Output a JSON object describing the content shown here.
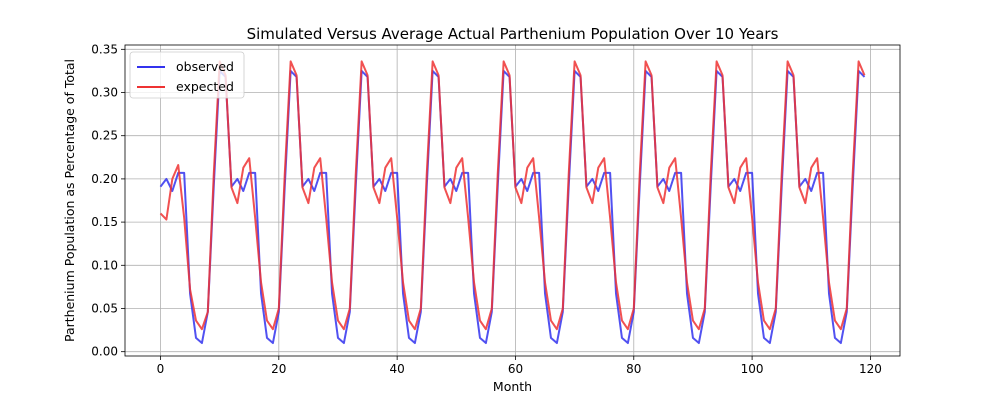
{
  "chart_data": {
    "type": "line",
    "title": "Simulated Versus Average Actual Parthenium Population Over 10 Years",
    "xlabel": "Month",
    "ylabel": "Parthenium Population as Percentage of Total",
    "xlim": [
      -6,
      125
    ],
    "ylim": [
      -0.005,
      0.355
    ],
    "xticks": [
      0,
      20,
      40,
      60,
      80,
      100,
      120
    ],
    "yticks": [
      0.0,
      0.05,
      0.1,
      0.15,
      0.2,
      0.25,
      0.3,
      0.35
    ],
    "ytick_labels": [
      "0.00",
      "0.05",
      "0.10",
      "0.15",
      "0.20",
      "0.25",
      "0.30",
      "0.35"
    ],
    "grid": true,
    "legend_position": "top-left",
    "months": 120,
    "series": [
      {
        "name": "observed",
        "color": "#3333ee",
        "first_year": [
          0.191,
          0.2,
          0.186,
          0.207,
          0.207,
          0.067,
          0.016,
          0.01,
          0.046,
          0.191,
          0.325,
          0.318
        ],
        "pattern": [
          0.191,
          0.2,
          0.186,
          0.207,
          0.207,
          0.067,
          0.016,
          0.01,
          0.046,
          0.191,
          0.325,
          0.318
        ]
      },
      {
        "name": "expected",
        "color": "#ee3333",
        "first_year": [
          0.16,
          0.153,
          0.2,
          0.216,
          0.155,
          0.072,
          0.036,
          0.026,
          0.046,
          0.205,
          0.336,
          0.32
        ],
        "pattern": [
          0.19,
          0.172,
          0.213,
          0.224,
          0.155,
          0.08,
          0.036,
          0.026,
          0.05,
          0.205,
          0.336,
          0.32
        ]
      }
    ]
  }
}
